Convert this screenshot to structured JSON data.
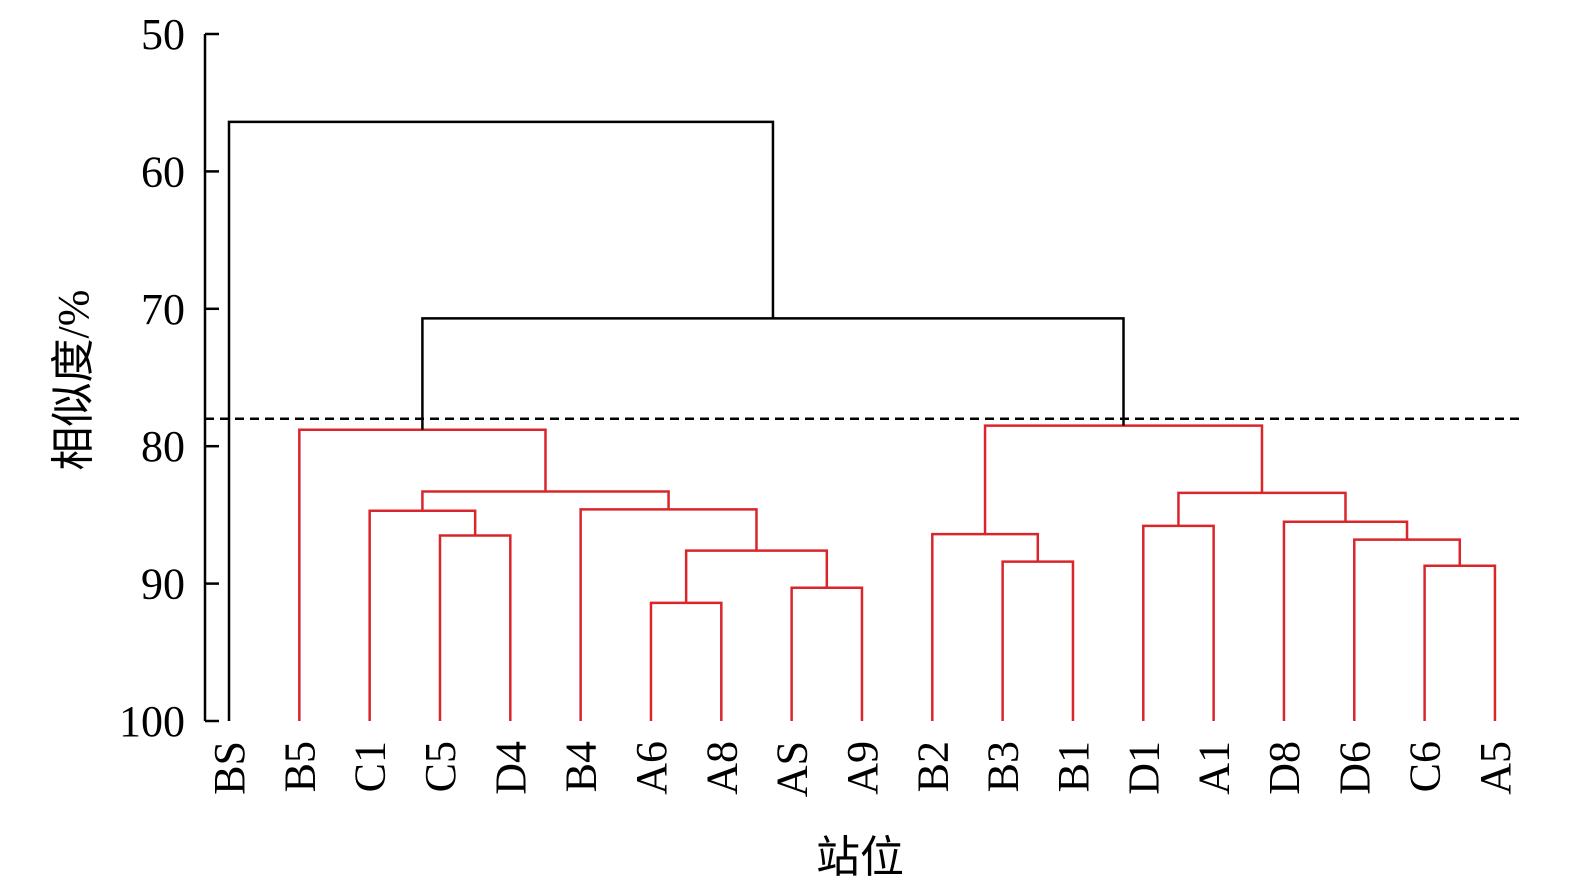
{
  "chart_data": {
    "type": "dendrogram",
    "x_label": "站位",
    "y_label": "相似度/%",
    "leaves": [
      "BS",
      "B5",
      "C1",
      "C5",
      "D4",
      "B4",
      "A6",
      "A8",
      "AS",
      "A9",
      "B2",
      "B3",
      "B1",
      "D1",
      "A1",
      "D8",
      "D6",
      "C6",
      "A5"
    ],
    "merges": [
      {
        "children": [
          3,
          4
        ],
        "height": 86.5
      },
      {
        "children": [
          2,
          19
        ],
        "height": 84.7
      },
      {
        "children": [
          6,
          7
        ],
        "height": 91.4
      },
      {
        "children": [
          8,
          9
        ],
        "height": 90.3
      },
      {
        "children": [
          21,
          22
        ],
        "height": 87.6
      },
      {
        "children": [
          5,
          23
        ],
        "height": 84.6
      },
      {
        "children": [
          20,
          24
        ],
        "height": 83.3
      },
      {
        "children": [
          1,
          25
        ],
        "height": 78.8
      },
      {
        "children": [
          11,
          12
        ],
        "height": 88.4
      },
      {
        "children": [
          10,
          27
        ],
        "height": 86.4
      },
      {
        "children": [
          13,
          14
        ],
        "height": 85.8
      },
      {
        "children": [
          17,
          18
        ],
        "height": 88.7
      },
      {
        "children": [
          16,
          30
        ],
        "height": 86.8
      },
      {
        "children": [
          15,
          31
        ],
        "height": 85.5
      },
      {
        "children": [
          29,
          32
        ],
        "height": 83.4
      },
      {
        "children": [
          28,
          33
        ],
        "height": 78.5
      },
      {
        "children": [
          26,
          34
        ],
        "height": 70.7
      },
      {
        "children": [
          0,
          35
        ],
        "height": 56.4
      }
    ],
    "threshold": 78.0,
    "color_below_threshold": "#d9262b",
    "color_above_threshold": "#000000",
    "ylim": [
      50,
      100
    ],
    "yticks": [
      50,
      60,
      70,
      80,
      90,
      100
    ],
    "grid": false
  }
}
